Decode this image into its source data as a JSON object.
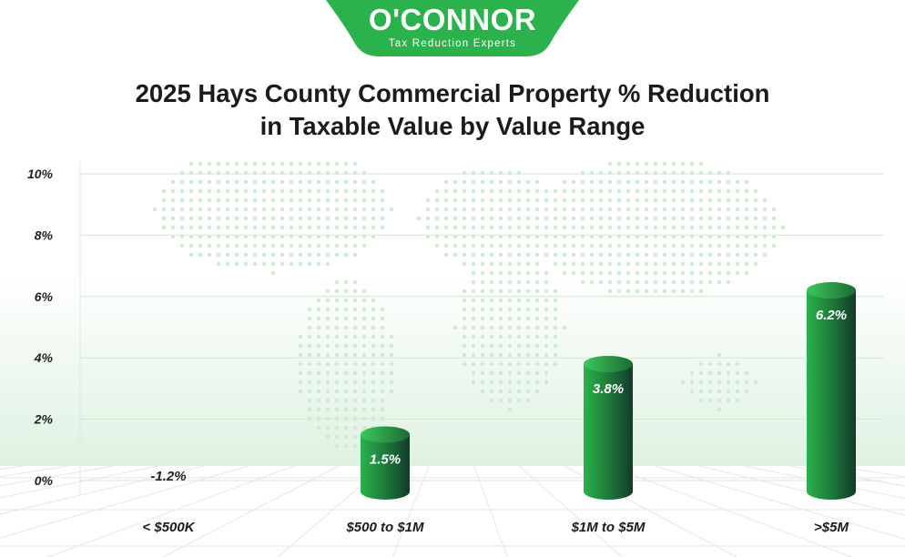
{
  "brand": {
    "name": "O'CONNOR",
    "tagline": "Tax Reduction Experts",
    "color": "#2BB24C"
  },
  "chart_data": {
    "type": "bar",
    "title_lines": [
      "2025 Hays County Commercial Property % Reduction",
      "in Taxable Value by Value Range"
    ],
    "categories": [
      "< $500K",
      "$500 to $1M",
      "$1M to $5M",
      ">$5M"
    ],
    "values": [
      -1.2,
      1.5,
      3.8,
      6.2
    ],
    "value_labels": [
      "-1.2%",
      "1.5%",
      "3.8%",
      "6.2%"
    ],
    "y_ticks": [
      "0%",
      "2%",
      "4%",
      "6%",
      "8%",
      "10%"
    ],
    "ylim": [
      0,
      10
    ],
    "xlabel": "",
    "ylabel": "",
    "grid": true,
    "colors": {
      "bar_light": "#2BB24C",
      "bar_dark": "#123A2A",
      "label_outside": "#222222",
      "label_inside": "#ffffff"
    }
  }
}
